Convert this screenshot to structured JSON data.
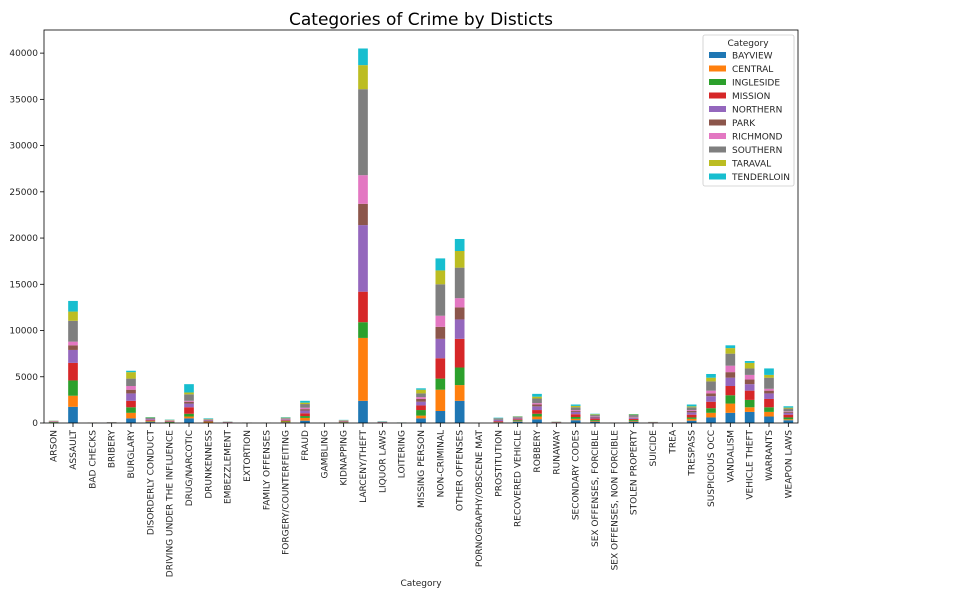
{
  "chart_data": {
    "type": "bar",
    "stacked": true,
    "title": "Categories of Crime by Disticts",
    "xlabel": "Category",
    "ylabel": "",
    "ylim": [
      0,
      42500
    ],
    "yticks": [
      0,
      5000,
      10000,
      15000,
      20000,
      25000,
      30000,
      35000,
      40000
    ],
    "grid": false,
    "legend": {
      "title": "Category",
      "placement": "top-right"
    },
    "categories": [
      "ARSON",
      "ASSAULT",
      "BAD CHECKS",
      "BRIBERY",
      "BURGLARY",
      "DISORDERLY CONDUCT",
      "DRIVING UNDER THE INFLUENCE",
      "DRUG/NARCOTIC",
      "DRUNKENNESS",
      "EMBEZZLEMENT",
      "EXTORTION",
      "FAMILY OFFENSES",
      "FORGERY/COUNTERFEITING",
      "FRAUD",
      "GAMBLING",
      "KIDNAPPING",
      "LARCENY/THEFT",
      "LIQUOR LAWS",
      "LOITERING",
      "MISSING PERSON",
      "NON-CRIMINAL",
      "OTHER OFFENSES",
      "PORNOGRAPHY/OBSCENE MAT",
      "PROSTITUTION",
      "RECOVERED VEHICLE",
      "ROBBERY",
      "RUNAWAY",
      "SECONDARY CODES",
      "SEX OFFENSES, FORCIBLE",
      "SEX OFFENSES, NON FORCIBLE",
      "STOLEN PROPERTY",
      "SUICIDE",
      "TREA",
      "TRESPASS",
      "SUSPICIOUS OCC",
      "VANDALISM",
      "VEHICLE THEFT",
      "WARRANTS",
      "WEAPON LAWS"
    ],
    "series": [
      {
        "name": "BAYVIEW",
        "color": "#1f77b4",
        "values": [
          60,
          1750,
          3,
          20,
          500,
          100,
          30,
          500,
          50,
          20,
          5,
          3,
          80,
          250,
          3,
          60,
          2400,
          30,
          5,
          500,
          1300,
          2400,
          0,
          40,
          150,
          400,
          20,
          300,
          150,
          3,
          150,
          20,
          0,
          250,
          600,
          1100,
          1200,
          700,
          300
        ]
      },
      {
        "name": "CENTRAL",
        "color": "#ff7f0e",
        "values": [
          20,
          1200,
          5,
          10,
          600,
          50,
          30,
          200,
          60,
          20,
          5,
          3,
          80,
          300,
          2,
          30,
          6800,
          10,
          5,
          300,
          2300,
          1700,
          0,
          30,
          50,
          300,
          15,
          150,
          80,
          2,
          80,
          10,
          0,
          200,
          500,
          1000,
          500,
          500,
          100
        ]
      },
      {
        "name": "INGLESIDE",
        "color": "#2ca02c",
        "values": [
          30,
          1650,
          3,
          10,
          600,
          50,
          50,
          300,
          40,
          10,
          5,
          3,
          60,
          200,
          2,
          40,
          1700,
          10,
          5,
          600,
          1200,
          1900,
          0,
          20,
          100,
          300,
          20,
          200,
          100,
          2,
          100,
          10,
          0,
          150,
          500,
          900,
          800,
          500,
          200
        ]
      },
      {
        "name": "MISSION",
        "color": "#d62728",
        "values": [
          30,
          1900,
          5,
          15,
          700,
          100,
          40,
          700,
          60,
          20,
          5,
          3,
          70,
          300,
          3,
          40,
          3300,
          30,
          10,
          500,
          2200,
          3100,
          2,
          100,
          100,
          400,
          20,
          300,
          150,
          3,
          120,
          15,
          0,
          300,
          700,
          1000,
          1000,
          900,
          300
        ]
      },
      {
        "name": "NORTHERN",
        "color": "#9467bd",
        "values": [
          20,
          1400,
          5,
          10,
          800,
          80,
          40,
          400,
          60,
          20,
          5,
          3,
          80,
          300,
          3,
          40,
          7200,
          20,
          5,
          400,
          2100,
          2100,
          2,
          130,
          80,
          400,
          15,
          250,
          120,
          3,
          120,
          10,
          0,
          250,
          600,
          900,
          700,
          600,
          200
        ]
      },
      {
        "name": "PARK",
        "color": "#8c564b",
        "values": [
          20,
          500,
          3,
          5,
          400,
          30,
          40,
          200,
          40,
          10,
          3,
          2,
          40,
          150,
          2,
          15,
          2300,
          10,
          5,
          300,
          1300,
          1300,
          0,
          20,
          50,
          200,
          15,
          100,
          60,
          2,
          50,
          10,
          0,
          150,
          300,
          600,
          500,
          300,
          100
        ]
      },
      {
        "name": "RICHMOND",
        "color": "#e377c2",
        "values": [
          20,
          400,
          3,
          5,
          400,
          30,
          30,
          100,
          30,
          10,
          3,
          2,
          40,
          150,
          2,
          15,
          3100,
          5,
          3,
          200,
          1200,
          1000,
          0,
          10,
          40,
          150,
          10,
          100,
          50,
          2,
          40,
          10,
          0,
          100,
          300,
          700,
          500,
          200,
          60
        ]
      },
      {
        "name": "SOUTHERN",
        "color": "#7f7f7f",
        "values": [
          30,
          2250,
          5,
          15,
          800,
          100,
          40,
          700,
          70,
          30,
          5,
          3,
          80,
          400,
          3,
          40,
          9300,
          30,
          10,
          400,
          3400,
          3300,
          2,
          150,
          100,
          500,
          20,
          300,
          150,
          3,
          200,
          20,
          0,
          300,
          1000,
          1300,
          700,
          1200,
          300
        ]
      },
      {
        "name": "TARAVAL",
        "color": "#bcbd22",
        "values": [
          20,
          1000,
          5,
          5,
          700,
          50,
          50,
          200,
          40,
          10,
          3,
          2,
          50,
          150,
          2,
          30,
          2600,
          10,
          5,
          400,
          1500,
          1800,
          0,
          15,
          40,
          200,
          15,
          150,
          80,
          2,
          60,
          10,
          0,
          100,
          400,
          600,
          600,
          300,
          100
        ]
      },
      {
        "name": "TENDERLOIN",
        "color": "#17becf",
        "values": [
          10,
          1150,
          3,
          5,
          150,
          50,
          30,
          900,
          60,
          10,
          3,
          1,
          50,
          200,
          3,
          30,
          1800,
          30,
          5,
          150,
          1300,
          1300,
          0,
          60,
          30,
          300,
          10,
          150,
          60,
          1,
          50,
          5,
          0,
          200,
          400,
          300,
          200,
          700,
          150
        ]
      }
    ]
  }
}
